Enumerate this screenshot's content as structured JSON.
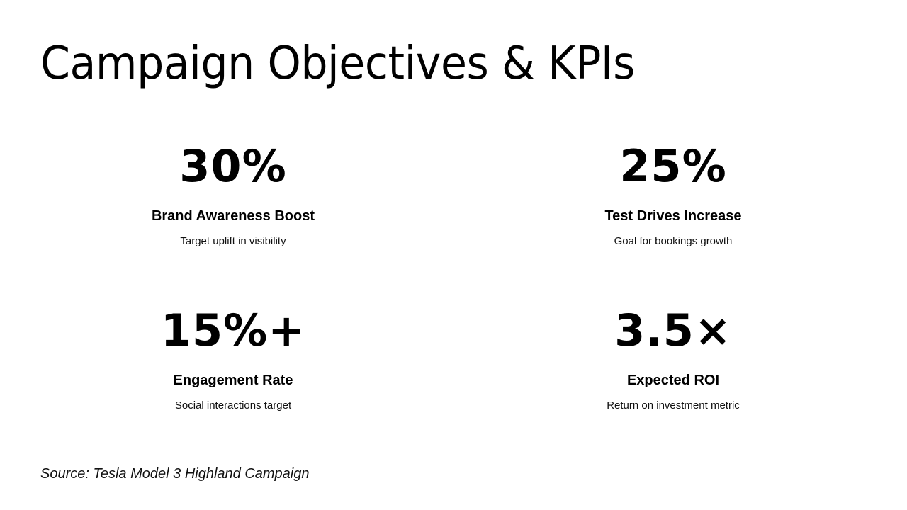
{
  "slide": {
    "title": "Campaign Objectives & KPIs",
    "kpis": [
      {
        "value": "30%",
        "label": "Brand Awareness Boost",
        "description": "Target uplift in visibility"
      },
      {
        "value": "25%",
        "label": "Test Drives Increase",
        "description": "Goal for bookings growth"
      },
      {
        "value": "15%+",
        "label": "Engagement Rate",
        "description": "Social interactions target"
      },
      {
        "value": "3.5×",
        "label": "Expected ROI",
        "description": "Return on investment metric"
      }
    ],
    "source": "Source: Tesla Model 3 Highland Campaign"
  },
  "colors": {
    "background": "#ffffff",
    "text": "#000000"
  }
}
